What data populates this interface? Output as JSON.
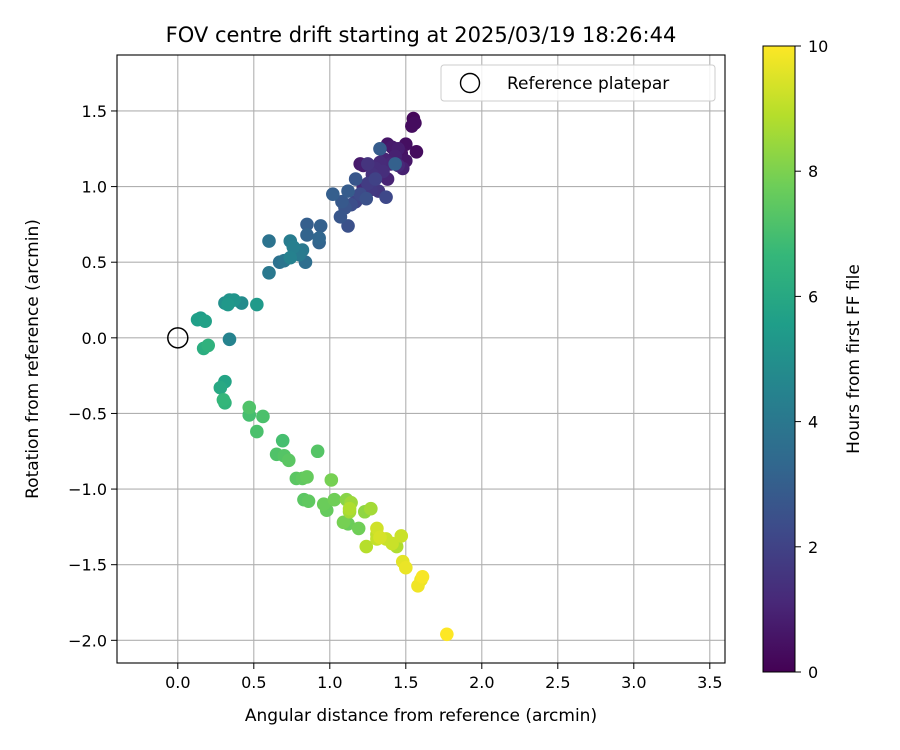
{
  "chart_data": {
    "type": "scatter",
    "title": "FOV centre drift starting at 2025/03/19 18:26:44",
    "xlabel": "Angular distance from reference (arcmin)",
    "ylabel": "Rotation from reference (arcmin)",
    "xlim": [
      -0.4,
      3.6
    ],
    "ylim": [
      -2.15,
      1.87
    ],
    "x_ticks": [
      0.0,
      0.5,
      1.0,
      1.5,
      2.0,
      2.5,
      3.0,
      3.5
    ],
    "x_tick_labels": [
      "0.0",
      "0.5",
      "1.0",
      "1.5",
      "2.0",
      "2.5",
      "3.0",
      "3.5"
    ],
    "y_ticks": [
      -2.0,
      -1.5,
      -1.0,
      -0.5,
      0.0,
      0.5,
      1.0,
      1.5
    ],
    "y_tick_labels": [
      "−2.0",
      "−1.5",
      "−1.0",
      "−0.5",
      "0.0",
      "0.5",
      "1.0",
      "1.5"
    ],
    "grid": true,
    "legend": {
      "placement": "top-right",
      "entries": [
        {
          "label": "Reference platepar",
          "marker": "open-circle",
          "color": "#000000"
        }
      ]
    },
    "reference_point": {
      "x": 0.0,
      "y": 0.0
    },
    "colorbar": {
      "label": "Hours from first FF file",
      "range": [
        0,
        10
      ],
      "ticks": [
        0,
        2,
        4,
        6,
        8,
        10
      ],
      "tick_labels": [
        "0",
        "2",
        "4",
        "6",
        "8",
        "10"
      ],
      "colormap": "viridis",
      "stops": [
        "#440154",
        "#482878",
        "#3e4989",
        "#31688e",
        "#26828e",
        "#1f9e89",
        "#35b779",
        "#6ece58",
        "#b5de2b",
        "#fde725"
      ]
    },
    "series": [
      {
        "points": [
          {
            "x": 1.55,
            "y": 1.45,
            "h": 0.2
          },
          {
            "x": 1.56,
            "y": 1.42,
            "h": 0.3
          },
          {
            "x": 1.54,
            "y": 1.4,
            "h": 0.3
          },
          {
            "x": 1.5,
            "y": 1.28,
            "h": 0.4
          },
          {
            "x": 1.57,
            "y": 1.23,
            "h": 0.3
          },
          {
            "x": 1.38,
            "y": 1.28,
            "h": 0.6
          },
          {
            "x": 1.41,
            "y": 1.26,
            "h": 0.7
          },
          {
            "x": 1.45,
            "y": 1.25,
            "h": 0.8
          },
          {
            "x": 1.47,
            "y": 1.22,
            "h": 0.5
          },
          {
            "x": 1.43,
            "y": 1.2,
            "h": 0.9
          },
          {
            "x": 1.36,
            "y": 1.18,
            "h": 1.0
          },
          {
            "x": 1.33,
            "y": 1.16,
            "h": 1.2
          },
          {
            "x": 1.4,
            "y": 1.15,
            "h": 1.1
          },
          {
            "x": 1.5,
            "y": 1.17,
            "h": 0.6
          },
          {
            "x": 1.48,
            "y": 1.12,
            "h": 0.9
          },
          {
            "x": 1.3,
            "y": 1.12,
            "h": 1.3
          },
          {
            "x": 1.25,
            "y": 1.15,
            "h": 1.5
          },
          {
            "x": 1.22,
            "y": 1.14,
            "h": 0.8
          },
          {
            "x": 1.2,
            "y": 1.15,
            "h": 0.7
          },
          {
            "x": 1.28,
            "y": 1.08,
            "h": 1.4
          },
          {
            "x": 1.35,
            "y": 1.1,
            "h": 1.3
          },
          {
            "x": 1.38,
            "y": 1.05,
            "h": 1.0
          },
          {
            "x": 1.3,
            "y": 1.05,
            "h": 2.0
          },
          {
            "x": 1.25,
            "y": 1.02,
            "h": 1.8
          },
          {
            "x": 1.22,
            "y": 1.0,
            "h": 1.2
          },
          {
            "x": 1.27,
            "y": 0.98,
            "h": 1.7
          },
          {
            "x": 1.32,
            "y": 0.97,
            "h": 1.6
          },
          {
            "x": 1.37,
            "y": 0.93,
            "h": 2.2
          },
          {
            "x": 1.2,
            "y": 0.95,
            "h": 2.3
          },
          {
            "x": 1.24,
            "y": 0.92,
            "h": 2.5
          },
          {
            "x": 1.17,
            "y": 0.9,
            "h": 2.1
          },
          {
            "x": 1.14,
            "y": 0.88,
            "h": 2.4
          },
          {
            "x": 1.1,
            "y": 0.86,
            "h": 2.6
          },
          {
            "x": 1.08,
            "y": 0.9,
            "h": 2.8
          },
          {
            "x": 1.12,
            "y": 0.97,
            "h": 2.9
          },
          {
            "x": 1.02,
            "y": 0.95,
            "h": 3.0
          },
          {
            "x": 1.07,
            "y": 0.8,
            "h": 2.7
          },
          {
            "x": 1.12,
            "y": 0.74,
            "h": 2.5
          },
          {
            "x": 1.17,
            "y": 1.05,
            "h": 2.7
          },
          {
            "x": 1.33,
            "y": 1.25,
            "h": 2.9
          },
          {
            "x": 1.43,
            "y": 1.15,
            "h": 3.1
          },
          {
            "x": 1.45,
            "y": 1.14,
            "h": 1.1
          },
          {
            "x": 0.85,
            "y": 0.75,
            "h": 3.0
          },
          {
            "x": 0.94,
            "y": 0.74,
            "h": 3.1
          },
          {
            "x": 0.93,
            "y": 0.66,
            "h": 3.3
          },
          {
            "x": 0.93,
            "y": 0.63,
            "h": 3.2
          },
          {
            "x": 0.85,
            "y": 0.68,
            "h": 3.2
          },
          {
            "x": 0.82,
            "y": 0.58,
            "h": 4.0
          },
          {
            "x": 0.74,
            "y": 0.64,
            "h": 4.2
          },
          {
            "x": 0.76,
            "y": 0.6,
            "h": 4.3
          },
          {
            "x": 0.8,
            "y": 0.55,
            "h": 4.1
          },
          {
            "x": 0.74,
            "y": 0.53,
            "h": 4.4
          },
          {
            "x": 0.7,
            "y": 0.51,
            "h": 3.9
          },
          {
            "x": 0.67,
            "y": 0.5,
            "h": 3.7
          },
          {
            "x": 0.84,
            "y": 0.5,
            "h": 3.6
          },
          {
            "x": 0.6,
            "y": 0.64,
            "h": 3.8
          },
          {
            "x": 0.6,
            "y": 0.43,
            "h": 4.0
          },
          {
            "x": 0.31,
            "y": 0.23,
            "h": 5.0
          },
          {
            "x": 0.34,
            "y": 0.25,
            "h": 5.1
          },
          {
            "x": 0.37,
            "y": 0.25,
            "h": 5.2
          },
          {
            "x": 0.33,
            "y": 0.22,
            "h": 5.3
          },
          {
            "x": 0.42,
            "y": 0.23,
            "h": 4.8
          },
          {
            "x": 0.52,
            "y": 0.22,
            "h": 5.4
          },
          {
            "x": 0.13,
            "y": 0.12,
            "h": 5.6
          },
          {
            "x": 0.15,
            "y": 0.13,
            "h": 5.5
          },
          {
            "x": 0.18,
            "y": 0.11,
            "h": 5.7
          },
          {
            "x": 0.34,
            "y": -0.01,
            "h": 4.5
          },
          {
            "x": 0.17,
            "y": -0.07,
            "h": 6.2
          },
          {
            "x": 0.2,
            "y": -0.05,
            "h": 6.4
          },
          {
            "x": 0.28,
            "y": -0.33,
            "h": 6.0
          },
          {
            "x": 0.31,
            "y": -0.29,
            "h": 5.8
          },
          {
            "x": 0.3,
            "y": -0.41,
            "h": 6.6
          },
          {
            "x": 0.31,
            "y": -0.43,
            "h": 6.5
          },
          {
            "x": 0.47,
            "y": -0.46,
            "h": 7.2
          },
          {
            "x": 0.47,
            "y": -0.51,
            "h": 7.0
          },
          {
            "x": 0.56,
            "y": -0.52,
            "h": 7.1
          },
          {
            "x": 0.52,
            "y": -0.62,
            "h": 7.1
          },
          {
            "x": 0.69,
            "y": -0.68,
            "h": 7.0
          },
          {
            "x": 0.65,
            "y": -0.77,
            "h": 7.2
          },
          {
            "x": 0.7,
            "y": -0.78,
            "h": 7.3
          },
          {
            "x": 0.73,
            "y": -0.81,
            "h": 7.4
          },
          {
            "x": 0.92,
            "y": -0.75,
            "h": 7.3
          },
          {
            "x": 0.78,
            "y": -0.93,
            "h": 7.4
          },
          {
            "x": 0.82,
            "y": -0.93,
            "h": 7.5
          },
          {
            "x": 0.85,
            "y": -0.92,
            "h": 7.6
          },
          {
            "x": 1.01,
            "y": -0.94,
            "h": 7.9
          },
          {
            "x": 0.83,
            "y": -1.07,
            "h": 7.4
          },
          {
            "x": 0.86,
            "y": -1.08,
            "h": 7.5
          },
          {
            "x": 0.96,
            "y": -1.1,
            "h": 7.7
          },
          {
            "x": 1.03,
            "y": -1.07,
            "h": 7.8
          },
          {
            "x": 0.98,
            "y": -1.14,
            "h": 7.6
          },
          {
            "x": 1.11,
            "y": -1.07,
            "h": 8.2
          },
          {
            "x": 1.14,
            "y": -1.09,
            "h": 8.5
          },
          {
            "x": 1.13,
            "y": -1.13,
            "h": 8.8
          },
          {
            "x": 1.13,
            "y": -1.15,
            "h": 8.6
          },
          {
            "x": 1.09,
            "y": -1.22,
            "h": 7.9
          },
          {
            "x": 1.12,
            "y": -1.23,
            "h": 7.7
          },
          {
            "x": 1.19,
            "y": -1.26,
            "h": 7.8
          },
          {
            "x": 1.23,
            "y": -1.15,
            "h": 8.3
          },
          {
            "x": 1.27,
            "y": -1.13,
            "h": 8.6
          },
          {
            "x": 1.31,
            "y": -1.26,
            "h": 9.3
          },
          {
            "x": 1.31,
            "y": -1.3,
            "h": 9.0
          },
          {
            "x": 1.33,
            "y": -1.32,
            "h": 9.4
          },
          {
            "x": 1.31,
            "y": -1.33,
            "h": 9.1
          },
          {
            "x": 1.37,
            "y": -1.33,
            "h": 9.2
          },
          {
            "x": 1.41,
            "y": -1.36,
            "h": 9.2
          },
          {
            "x": 1.44,
            "y": -1.38,
            "h": 8.8
          },
          {
            "x": 1.47,
            "y": -1.31,
            "h": 9.2
          },
          {
            "x": 1.24,
            "y": -1.38,
            "h": 8.9
          },
          {
            "x": 1.48,
            "y": -1.48,
            "h": 9.6
          },
          {
            "x": 1.5,
            "y": -1.52,
            "h": 9.7
          },
          {
            "x": 1.58,
            "y": -1.64,
            "h": 9.8
          },
          {
            "x": 1.6,
            "y": -1.6,
            "h": 9.7
          },
          {
            "x": 1.61,
            "y": -1.58,
            "h": 9.9
          },
          {
            "x": 1.77,
            "y": -1.96,
            "h": 10.0
          }
        ]
      }
    ]
  }
}
